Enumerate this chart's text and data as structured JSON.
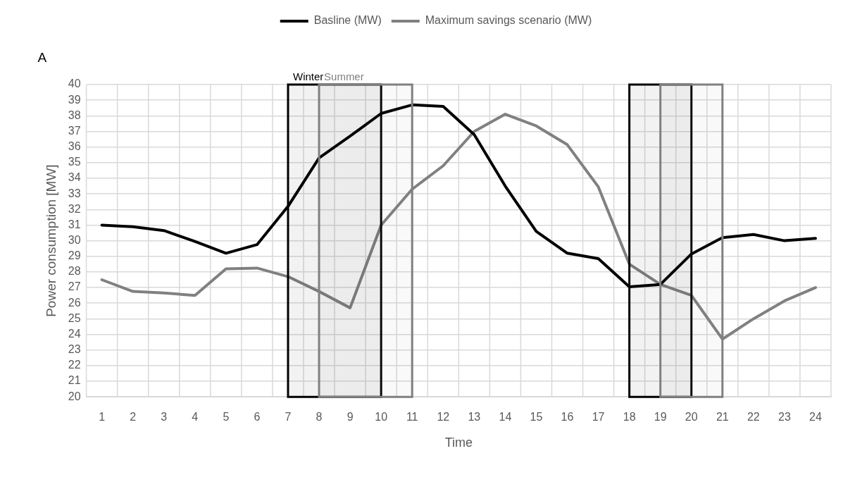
{
  "chart_data": {
    "type": "line",
    "xlabel": "Time",
    "ylabel": "Power consumption [MW]",
    "annotations": [
      "A"
    ],
    "x": [
      1,
      2,
      3,
      4,
      5,
      6,
      7,
      8,
      9,
      10,
      11,
      12,
      13,
      14,
      15,
      16,
      17,
      18,
      19,
      20,
      21,
      22,
      23,
      24
    ],
    "series": [
      {
        "name": "Basline (MW)",
        "color": "#000000",
        "values": [
          31.0,
          30.9,
          30.65,
          29.95,
          29.2,
          29.75,
          32.2,
          35.3,
          36.7,
          38.15,
          38.7,
          38.6,
          36.8,
          33.5,
          30.6,
          29.2,
          28.85,
          27.05,
          27.2,
          29.15,
          30.2,
          30.4,
          30.0,
          30.15
        ]
      },
      {
        "name": "Maximum savings scenario (MW)",
        "color": "#808080",
        "values": [
          27.5,
          26.75,
          26.65,
          26.5,
          28.2,
          28.25,
          27.7,
          26.75,
          25.7,
          31.0,
          33.3,
          34.8,
          37.0,
          38.1,
          37.35,
          36.15,
          33.45,
          28.5,
          27.2,
          26.5,
          23.7,
          25.0,
          26.15,
          27.0
        ]
      }
    ],
    "xlim": [
      0.5,
      24.5
    ],
    "xticks": [
      1,
      2,
      3,
      4,
      5,
      6,
      7,
      8,
      9,
      10,
      11,
      12,
      13,
      14,
      15,
      16,
      17,
      18,
      19,
      20,
      21,
      22,
      23,
      24
    ],
    "ylim": [
      20,
      40
    ],
    "yticks": [
      20,
      21,
      22,
      23,
      24,
      25,
      26,
      27,
      28,
      29,
      30,
      31,
      32,
      33,
      34,
      35,
      36,
      37,
      38,
      39,
      40
    ],
    "bands": [
      {
        "axis": "x",
        "from": 7,
        "to": 10,
        "label": "Winter",
        "color": "#000000"
      },
      {
        "axis": "x",
        "from": 8,
        "to": 11,
        "label": "Summer",
        "color": "#808080"
      },
      {
        "axis": "x",
        "from": 18,
        "to": 20,
        "color": "#000000"
      },
      {
        "axis": "x",
        "from": 19,
        "to": 21,
        "color": "#808080"
      }
    ],
    "grid": true,
    "legend": "top",
    "marker": "none",
    "line_style": "solid"
  }
}
